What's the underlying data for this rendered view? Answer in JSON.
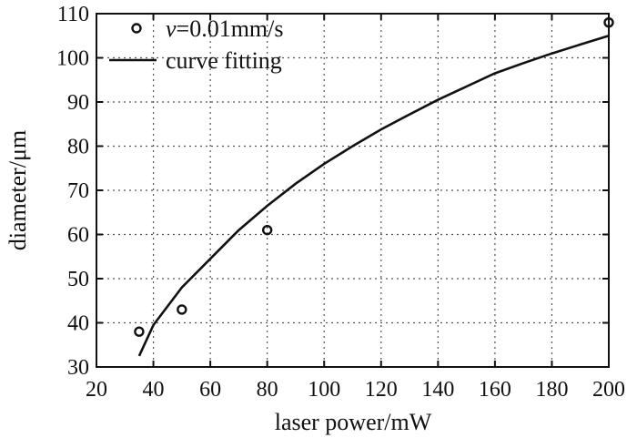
{
  "chart_data": {
    "type": "scatter",
    "title": "",
    "xlabel": "laser power/mW",
    "ylabel": "diameter/μm",
    "xlim": [
      20,
      200
    ],
    "ylim": [
      30,
      110
    ],
    "xticks": [
      20,
      40,
      60,
      80,
      100,
      120,
      140,
      160,
      180,
      200
    ],
    "yticks": [
      30,
      40,
      50,
      60,
      70,
      80,
      90,
      100,
      110
    ],
    "grid": true,
    "legend": {
      "placement": "top-left",
      "entries": [
        {
          "marker": "circle",
          "prefix": "v",
          "label": "=0.01mm/s"
        },
        {
          "marker": "line",
          "label": "curve fitting"
        }
      ]
    },
    "series": [
      {
        "kind": "points",
        "x": [
          35,
          50,
          80,
          200
        ],
        "y": [
          38,
          43,
          61,
          108
        ]
      },
      {
        "kind": "fit",
        "x": [
          35,
          40,
          50,
          60,
          70,
          80,
          90,
          100,
          110,
          120,
          130,
          140,
          150,
          160,
          170,
          180,
          190,
          200
        ],
        "y": [
          32.5,
          39.5,
          48,
          54.5,
          61,
          66.5,
          71.5,
          76,
          80,
          83.8,
          87.2,
          90.5,
          93.5,
          96.5,
          98.8,
          101,
          103,
          105
        ]
      }
    ]
  }
}
